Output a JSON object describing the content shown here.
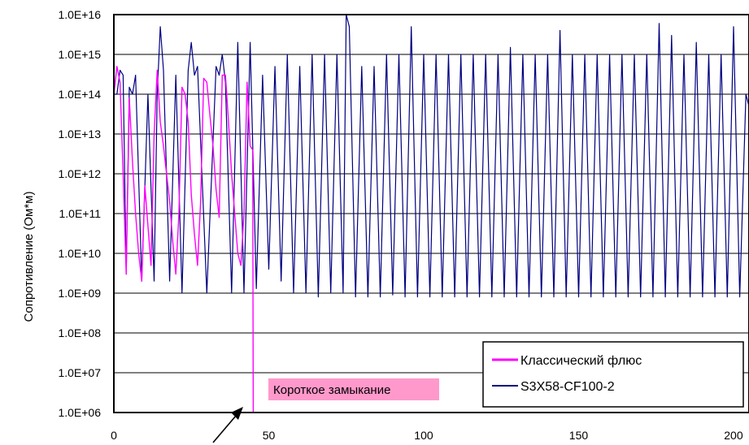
{
  "chart_data": {
    "type": "line",
    "title": "",
    "xlabel": "",
    "ylabel": "Сопротивление (Ом*м)",
    "y_scale": "log",
    "xlim": [
      0,
      205
    ],
    "ylim": [
      1000000.0,
      1e+16
    ],
    "x_ticks": [
      0,
      50,
      100,
      150,
      200
    ],
    "x_tick_labels": [
      "0",
      "50",
      "100",
      "150",
      "200"
    ],
    "y_ticks": [
      1000000.0,
      10000000.0,
      100000000.0,
      1000000000.0,
      10000000000.0,
      100000000000.0,
      1000000000000.0,
      10000000000000.0,
      100000000000000.0,
      1000000000000000.0,
      1e+16
    ],
    "y_tick_labels": [
      "1.0E+06",
      "1.0E+07",
      "1.0E+08",
      "1.0E+09",
      "1.0E+10",
      "1.0E+11",
      "1.0E+12",
      "1.0E+13",
      "1.0E+14",
      "1.0E+15",
      "1.0E+16"
    ],
    "grid": "horizontal",
    "legend_position": "bottom-right",
    "series": [
      {
        "name": "Классический флюс",
        "color": "#ff00ff",
        "x": [
          0,
          1,
          2,
          3,
          4,
          5,
          6,
          7,
          8,
          9,
          10,
          11,
          12,
          13,
          14,
          15,
          16,
          17,
          18,
          19,
          20,
          21,
          22,
          23,
          24,
          25,
          26,
          27,
          28,
          29,
          30,
          31,
          32,
          33,
          34,
          35,
          36,
          37,
          38,
          39,
          40,
          41,
          42,
          43,
          44,
          44.8,
          45
        ],
        "y": [
          100000000000000.0,
          500000000000000.0,
          200000000000000.0,
          1000000000000.0,
          3000000000.0,
          80000000000000.0,
          2000000000000.0,
          100000000000.0,
          10000000000.0,
          2000000000.0,
          500000000000.0,
          50000000000.0,
          5000000000.0,
          10000000000000.0,
          400000000000000.0,
          20000000000000.0,
          5000000000000.0,
          1000000000000.0,
          200000000000.0,
          20000000000.0,
          3000000000.0,
          100000000000.0,
          150000000000000.0,
          100000000000000.0,
          20000000000000.0,
          300000000000.0,
          30000000000.0,
          5000000000.0,
          200000000000.0,
          250000000000000.0,
          200000000000000.0,
          30000000000000.0,
          5000000000000.0,
          400000000000.0,
          80000000000.0,
          300000000000000.0,
          300000000000000.0,
          20000000000000.0,
          1000000000000.0,
          100000000000.0,
          10000000000.0,
          5000000000.0,
          100000000000.0,
          200000000000000.0,
          5000000000000.0,
          4000000000000.0,
          1000000.0
        ]
      },
      {
        "name": "S3X58-CF100-2",
        "color": "#000080",
        "x": [
          0,
          1,
          2,
          3,
          4,
          5,
          6,
          7,
          9,
          11,
          13,
          14,
          15,
          16,
          18,
          20,
          22,
          24,
          25,
          26,
          27,
          30,
          33,
          34,
          35,
          36,
          38,
          40,
          42,
          44,
          46,
          48,
          50,
          52,
          54,
          56,
          58,
          60,
          62,
          64,
          66,
          68,
          70,
          72,
          74,
          75,
          76,
          78,
          80,
          82,
          84,
          86,
          88,
          90,
          92,
          94,
          96,
          98,
          100,
          102,
          104,
          106,
          108,
          110,
          112,
          114,
          116,
          118,
          120,
          122,
          124,
          126,
          128,
          130,
          132,
          134,
          136,
          138,
          140,
          142,
          144,
          146,
          148,
          150,
          152,
          154,
          156,
          158,
          160,
          162,
          164,
          166,
          168,
          170,
          172,
          174,
          176,
          178,
          180,
          182,
          184,
          186,
          188,
          190,
          192,
          194,
          196,
          198,
          200,
          202,
          204,
          205
        ],
        "y": [
          100000000000000.0,
          100000000000000.0,
          400000000000000.0,
          300000000000000.0,
          3000000000.0,
          150000000000000.0,
          100000000000000.0,
          300000000000000.0,
          2000000000.0,
          100000000000000.0,
          2000000000.0,
          100000000000000.0,
          5000000000000000.0,
          400000000000000.0,
          2000000000.0,
          300000000000000.0,
          1000000000.0,
          400000000000000.0,
          2000000000000000.0,
          300000000000000.0,
          500000000000000.0,
          1000000000.0,
          500000000000000.0,
          300000000000000.0,
          1000000000000000.0,
          200000000000000.0,
          1000000000.0,
          2000000000000000.0,
          1000000000.0,
          2000000000000000.0,
          1300000000.0,
          300000000000000.0,
          4000000000.0,
          500000000000000.0,
          2000000000.0,
          1000000000000000.0,
          1000000000.0,
          500000000000000.0,
          1000000000.0,
          1000000000000000.0,
          800000000.0,
          1000000000000000.0,
          1000000000.0,
          1000000000000000.0,
          1000000000.0,
          1e+16,
          5000000000000000.0,
          800000000.0,
          500000000000000.0,
          800000000.0,
          500000000000000.0,
          800000000.0,
          1000000000000000.0,
          900000000.0,
          1000000000000000.0,
          800000000.0,
          5000000000000000.0,
          800000000.0,
          1000000000000000.0,
          800000000.0,
          1000000000000000.0,
          800000000.0,
          1000000000000000.0,
          800000000.0,
          1000000000000000.0,
          800000000.0,
          1000000000000000.0,
          800000000.0,
          1000000000000000.0,
          800000000.0,
          1000000000000000.0,
          800000000.0,
          1500000000000000.0,
          800000000.0,
          1000000000000000.0,
          800000000.0,
          1000000000000000.0,
          800000000.0,
          1000000000000000.0,
          800000000.0,
          4000000000000000.0,
          800000000.0,
          1000000000000000.0,
          800000000.0,
          1000000000000000.0,
          800000000.0,
          1000000000000000.0,
          800000000.0,
          1000000000000000.0,
          800000000.0,
          1000000000000000.0,
          800000000.0,
          1000000000000000.0,
          800000000.0,
          1000000000000000.0,
          800000000.0,
          6000000000000000.0,
          800000000.0,
          3000000000000000.0,
          800000000.0,
          1000000000000000.0,
          800000000.0,
          2000000000000000.0,
          800000000.0,
          1000000000000000.0,
          800000000.0,
          1000000000000000.0,
          800000000.0,
          5000000000000000.0,
          800000000.0,
          100000000000000.0,
          50000000000000.0
        ]
      }
    ],
    "annotations": [
      {
        "text": "Короткое замыкание",
        "x": 45,
        "y": 1000000.0,
        "background": "#ff99cc"
      }
    ]
  }
}
